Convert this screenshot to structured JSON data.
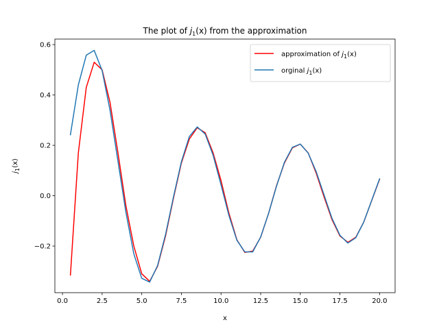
{
  "chart_data": {
    "type": "line",
    "title": {
      "prefix": "The plot of ",
      "fn": "j",
      "sub": "1",
      "suffix": "(x) from the approximation"
    },
    "xlabel": "x",
    "ylabel": {
      "fn": "j",
      "sub": "1",
      "suffix": "(x)"
    },
    "xlim": [
      -0.48,
      20.98
    ],
    "ylim": [
      -0.385,
      0.622
    ],
    "xticks": [
      0.0,
      2.5,
      5.0,
      7.5,
      10.0,
      12.5,
      15.0,
      17.5,
      20.0
    ],
    "xtick_labels": [
      "0.0",
      "2.5",
      "5.0",
      "7.5",
      "10.0",
      "12.5",
      "15.0",
      "17.5",
      "20.0"
    ],
    "yticks": [
      -0.2,
      0.0,
      0.2,
      0.4,
      0.6
    ],
    "ytick_labels": [
      "−0.2",
      "0.0",
      "0.2",
      "0.4",
      "0.6"
    ],
    "legend_position": "top-right",
    "x": [
      0.5,
      1.0,
      1.5,
      2.0,
      2.5,
      3.0,
      3.5,
      4.0,
      4.5,
      5.0,
      5.5,
      6.0,
      6.5,
      7.0,
      7.5,
      8.0,
      8.5,
      9.0,
      9.5,
      10.0,
      10.5,
      11.0,
      11.5,
      12.0,
      12.5,
      13.0,
      13.5,
      14.0,
      14.5,
      15.0,
      15.5,
      16.0,
      16.5,
      17.0,
      17.5,
      18.0,
      18.5,
      19.0,
      19.5,
      20.0
    ],
    "series": [
      {
        "name": "approximation",
        "legend": {
          "prefix": "approximation of ",
          "fn": "j",
          "sub": "1",
          "suffix": "(x)"
        },
        "color": "#ff0000",
        "values": [
          -0.315,
          0.17,
          0.43,
          0.53,
          0.5,
          0.37,
          0.17,
          -0.04,
          -0.2,
          -0.31,
          -0.34,
          -0.28,
          -0.16,
          -0.01,
          0.13,
          0.225,
          0.27,
          0.25,
          0.17,
          0.06,
          -0.07,
          -0.175,
          -0.225,
          -0.22,
          -0.165,
          -0.07,
          0.04,
          0.13,
          0.19,
          0.205,
          0.17,
          0.09,
          -0.005,
          -0.095,
          -0.16,
          -0.185,
          -0.165,
          -0.105,
          -0.02,
          0.065
        ]
      },
      {
        "name": "original",
        "legend": {
          "prefix": "orginal ",
          "fn": "j",
          "sub": "1",
          "suffix": "(x)"
        },
        "color": "#1f77b4",
        "values": [
          0.242,
          0.44,
          0.558,
          0.577,
          0.497,
          0.339,
          0.137,
          -0.066,
          -0.231,
          -0.328,
          -0.343,
          -0.277,
          -0.154,
          -0.005,
          0.135,
          0.235,
          0.273,
          0.245,
          0.161,
          0.043,
          -0.079,
          -0.177,
          -0.223,
          -0.223,
          -0.164,
          -0.07,
          0.038,
          0.133,
          0.192,
          0.205,
          0.169,
          0.096,
          0.003,
          -0.09,
          -0.157,
          -0.188,
          -0.167,
          -0.105,
          -0.019,
          0.067
        ]
      }
    ]
  }
}
